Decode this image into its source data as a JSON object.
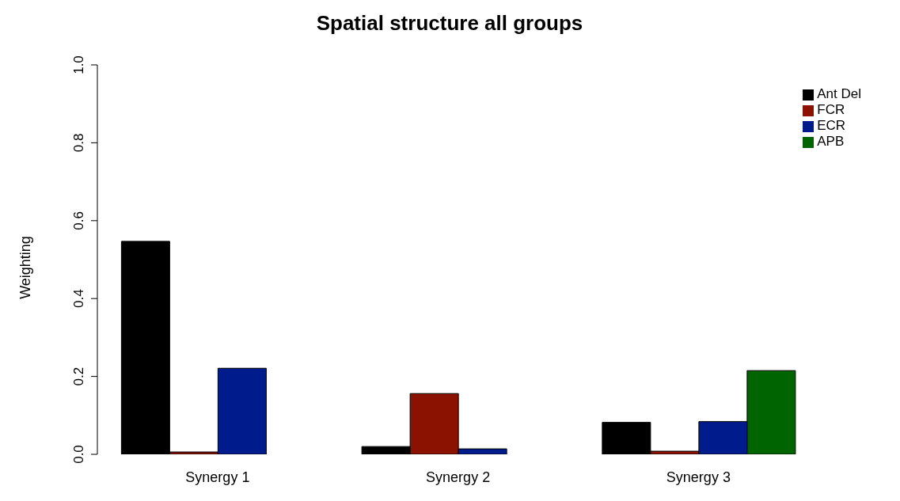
{
  "chart_data": {
    "type": "bar",
    "title": "Spatial structure all groups",
    "ylabel": "Weighting",
    "categories": [
      "Synergy 1",
      "Synergy 2",
      "Synergy 3"
    ],
    "series": [
      {
        "name": "Ant Del",
        "color": "#000000",
        "values": [
          0.547,
          0.02,
          0.082
        ]
      },
      {
        "name": "FCR",
        "color": "#8b1100",
        "values": [
          0.006,
          0.156,
          0.008
        ]
      },
      {
        "name": "ECR",
        "color": "#001c8c",
        "values": [
          0.221,
          0.014,
          0.084
        ]
      },
      {
        "name": "APB",
        "color": "#006400",
        "values": [
          0,
          0,
          0.215
        ]
      }
    ],
    "ylim": [
      0,
      1
    ],
    "yticks": [
      {
        "value": 0,
        "label": "0.0"
      },
      {
        "value": 0.2,
        "label": "0.2"
      },
      {
        "value": 0.4,
        "label": "0.4"
      },
      {
        "value": 0.6,
        "label": "0.6"
      },
      {
        "value": 0.8,
        "label": "0.8"
      },
      {
        "value": 1,
        "label": "1.0"
      }
    ],
    "grid": false,
    "legend": "top right"
  }
}
